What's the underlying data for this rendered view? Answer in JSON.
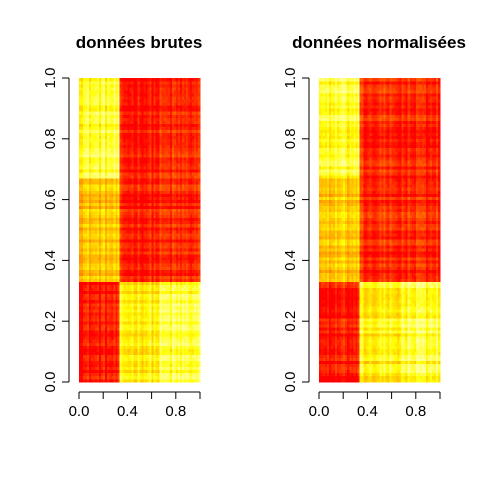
{
  "chart_data": [
    {
      "type": "heatmap",
      "title": "données brutes",
      "xlim": [
        0,
        1
      ],
      "ylim": [
        0,
        1
      ],
      "x_ticks": [
        0.0,
        0.4,
        0.8
      ],
      "x_tick_labels": [
        "0.0",
        "0.4",
        "0.8"
      ],
      "y_ticks": [
        0.0,
        0.2,
        0.4,
        0.6,
        0.8,
        1.0
      ],
      "y_tick_labels": [
        "0.0",
        "0.2",
        "0.4",
        "0.6",
        "0.8",
        "1.0"
      ],
      "colormap": [
        "#ff0000",
        "#ff4500",
        "#ff8c00",
        "#ffc000",
        "#ffff00",
        "#ffff99"
      ],
      "block_x_bounds": [
        0,
        0.333,
        0.667,
        1
      ],
      "block_y_bounds": [
        0,
        0.333,
        0.667,
        1
      ],
      "block_levels": [
        [
          0.05,
          0.75,
          0.85
        ],
        [
          0.6,
          0.08,
          0.1
        ],
        [
          0.85,
          0.06,
          0.1
        ]
      ],
      "block_levels_note_rows": "row 0 = bottom band (y 0–0.33), row 2 = top band"
    },
    {
      "type": "heatmap",
      "title": "données normalisées",
      "xlim": [
        0,
        1
      ],
      "ylim": [
        0,
        1
      ],
      "x_ticks": [
        0.0,
        0.4,
        0.8
      ],
      "x_tick_labels": [
        "0.0",
        "0.4",
        "0.8"
      ],
      "y_ticks": [
        0.0,
        0.2,
        0.4,
        0.6,
        0.8,
        1.0
      ],
      "y_tick_labels": [
        "0.0",
        "0.2",
        "0.4",
        "0.6",
        "0.8",
        "1.0"
      ],
      "colormap": [
        "#ff0000",
        "#ff4500",
        "#ff8c00",
        "#ffc000",
        "#ffff00",
        "#ffff99"
      ],
      "block_x_bounds": [
        0,
        0.333,
        0.667,
        1
      ],
      "block_y_bounds": [
        0,
        0.333,
        0.667,
        1
      ],
      "block_levels": [
        [
          0.05,
          0.75,
          0.85
        ],
        [
          0.6,
          0.1,
          0.1
        ],
        [
          0.85,
          0.12,
          0.1
        ]
      ],
      "block_levels_note_rows": "row 0 = bottom band (y 0–0.33), row 2 = top band"
    }
  ]
}
